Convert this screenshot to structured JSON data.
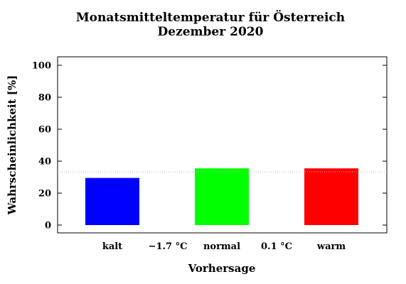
{
  "chart_data": {
    "type": "bar",
    "title_lines": [
      "Monatsmitteltemperatur für Österreich",
      "Dezember 2020"
    ],
    "xlabel": "Vorhersage",
    "ylabel": "Wahrscheinlichkeit [%]",
    "ylim": [
      0,
      100
    ],
    "yticks": [
      0,
      20,
      40,
      60,
      80,
      100
    ],
    "categories": [
      "kalt",
      "normal",
      "warm"
    ],
    "values": [
      29.5,
      35.5,
      35.5
    ],
    "bar_colors": [
      "#0000ff",
      "#00ff00",
      "#ff0000"
    ],
    "thresholds": [
      "−1.7 °C",
      "0.1 °C"
    ],
    "reference_line": 33.3,
    "grid": false,
    "legend": "none"
  }
}
